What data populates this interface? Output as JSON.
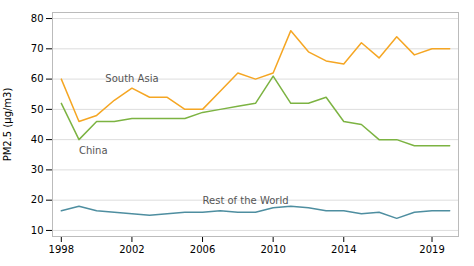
{
  "chart_data": {
    "type": "line",
    "y_label": "PM2.5 (μg/m3)",
    "x": [
      1998,
      1999,
      2000,
      2001,
      2002,
      2003,
      2004,
      2005,
      2006,
      2007,
      2008,
      2009,
      2010,
      2011,
      2012,
      2013,
      2014,
      2015,
      2016,
      2017,
      2018,
      2019,
      2020
    ],
    "series": [
      {
        "name": "South Asia",
        "color": "#F5A623",
        "values": [
          60,
          46,
          48,
          53,
          57,
          54,
          54,
          50,
          50,
          56,
          62,
          60,
          62,
          76,
          69,
          66,
          65,
          72,
          67,
          74,
          68,
          70,
          70
        ]
      },
      {
        "name": "China",
        "color": "#7CB342",
        "values": [
          52,
          40,
          46,
          46,
          47,
          47,
          47,
          47,
          49,
          50,
          51,
          52,
          61,
          52,
          52,
          54,
          46,
          45,
          40,
          40,
          38,
          38,
          38
        ]
      },
      {
        "name": "Rest of the World",
        "color": "#4E8EA0",
        "values": [
          16.5,
          18,
          16.5,
          16,
          15.5,
          15,
          15.5,
          16,
          16,
          16.5,
          16,
          16,
          17.5,
          18,
          17.5,
          16.5,
          16.5,
          15.5,
          16,
          14,
          16,
          16.5,
          16.5
        ]
      }
    ],
    "xlim": [
      1997.5,
      2020.5
    ],
    "xticks": [
      1998,
      2002,
      2006,
      2010,
      2014,
      2019
    ],
    "ylim": [
      8,
      82
    ],
    "yticks": [
      10,
      20,
      30,
      40,
      50,
      60,
      70,
      80
    ],
    "grid": true
  }
}
